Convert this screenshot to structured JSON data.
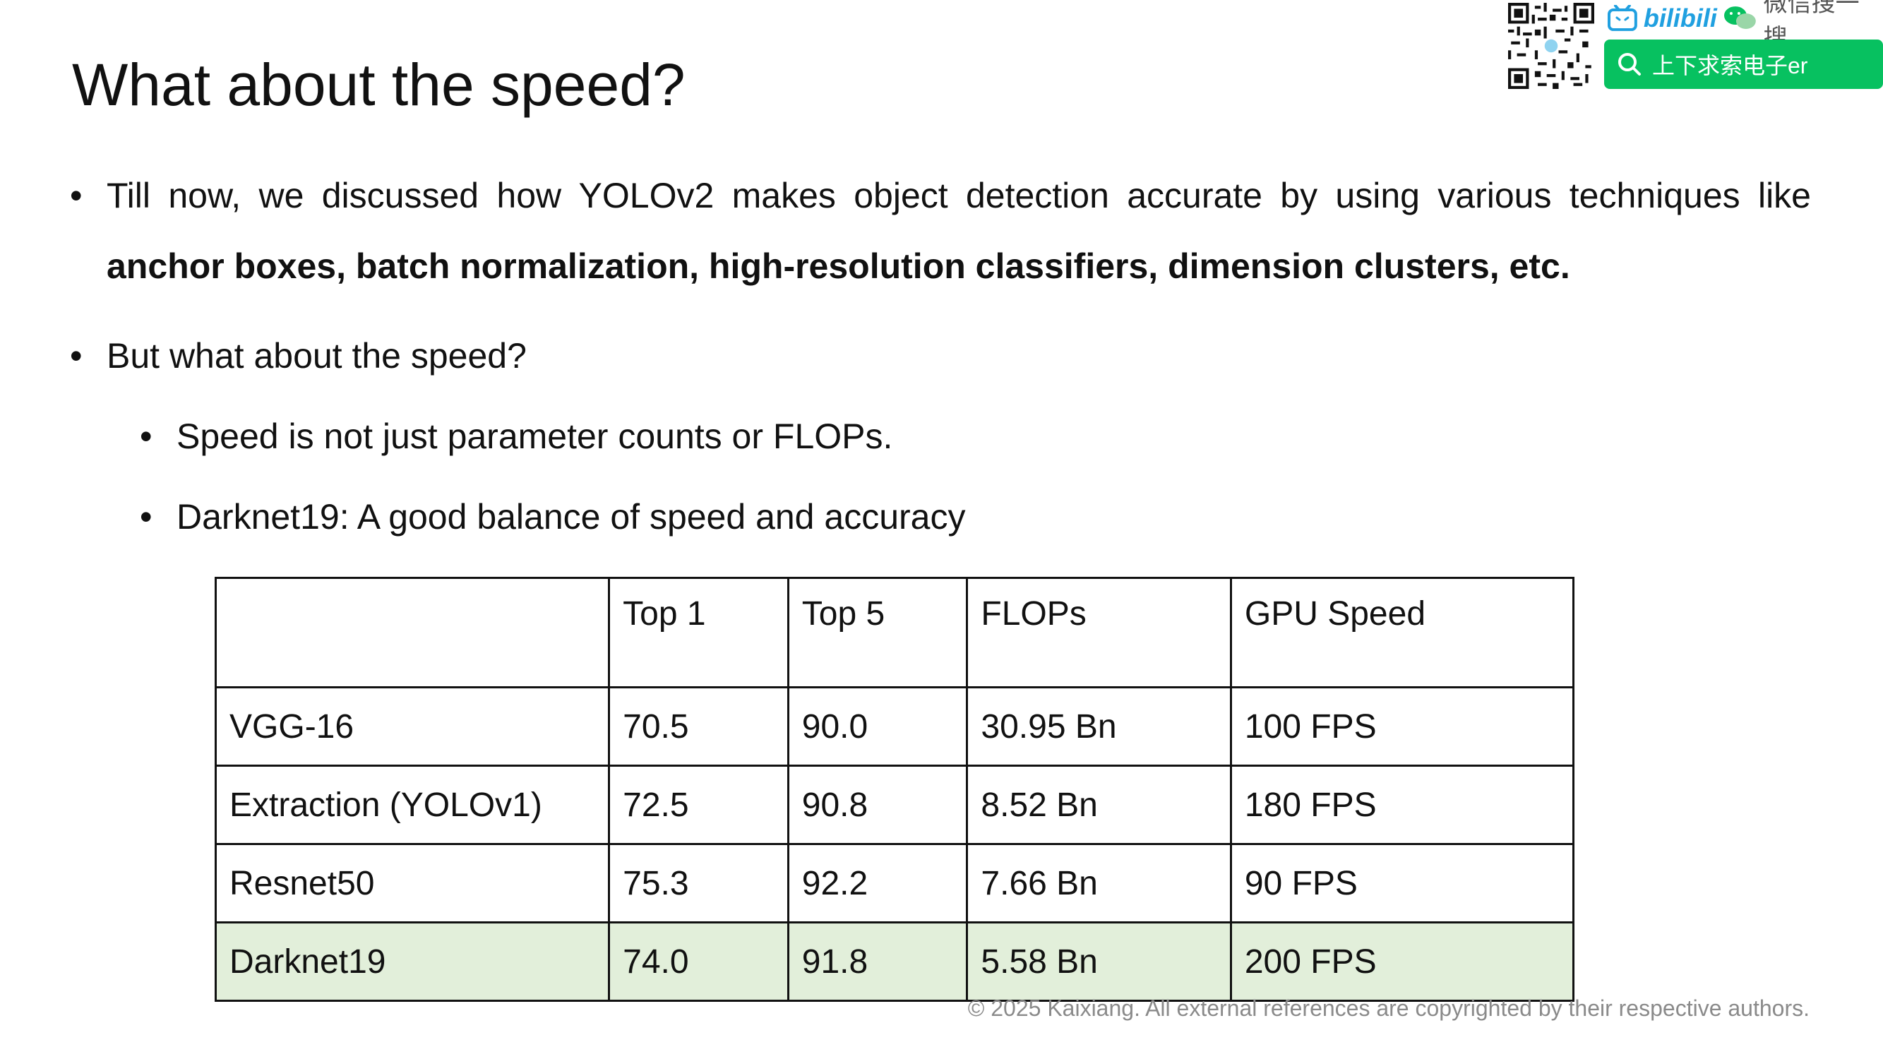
{
  "title": "What about the speed?",
  "bullets": {
    "b1_line1": "Till now, we discussed how YOLOv2 makes object detection accurate by using various techniques like",
    "b1_line2": "anchor boxes, batch normalization, high-resolution classifiers, dimension clusters, etc.",
    "b2": "But what about the speed?",
    "sub1": "Speed is not just parameter counts or FLOPs.",
    "sub2": "Darknet19: A good balance of speed and accuracy",
    "dot": "•"
  },
  "table": {
    "headers": [
      "",
      "Top 1",
      "Top 5",
      "FLOPs",
      "GPU Speed"
    ],
    "rows": [
      [
        "VGG-16",
        "70.5",
        "90.0",
        "30.95 Bn",
        "100 FPS"
      ],
      [
        "Extraction (YOLOv1)",
        "72.5",
        "90.8",
        "8.52 Bn",
        "180 FPS"
      ],
      [
        "Resnet50",
        "75.3",
        "92.2",
        "7.66 Bn",
        "90 FPS"
      ],
      [
        "Darknet19",
        "74.0",
        "91.8",
        "5.58 Bn",
        "200 FPS"
      ]
    ],
    "highlight_color": "#e2efda"
  },
  "footer": "© 2025 Kaixiang. All external references are copyrighted by their respective authors.",
  "watermark": {
    "bilibili": "bilibili",
    "wechat_label": "微信搜一搜",
    "search_text": "上下求索电子er",
    "search_color": "#07c160",
    "icons": [
      "qr-code-icon",
      "bilibili-tv-icon",
      "wechat-icon",
      "search-icon"
    ]
  }
}
